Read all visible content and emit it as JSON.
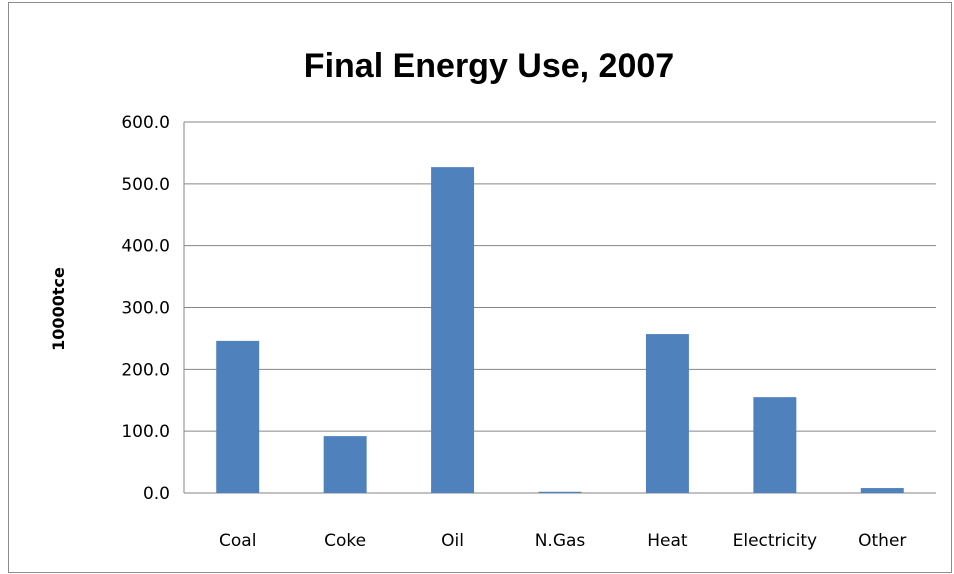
{
  "chart_data": {
    "type": "bar",
    "title": "Final Energy Use, 2007",
    "xlabel": "",
    "ylabel": "10000tce",
    "categories": [
      "Coal",
      "Coke",
      "Oil",
      "N.Gas",
      "Heat",
      "Electricity",
      "Other"
    ],
    "values": [
      246.0,
      92.0,
      527.0,
      2.0,
      257.0,
      155.0,
      8.0
    ],
    "ylim": [
      0,
      600
    ],
    "yticks": [
      "0.0",
      "100.0",
      "200.0",
      "300.0",
      "400.0",
      "500.0",
      "600.0"
    ],
    "grid": true,
    "legend": "none",
    "bar_color": "#4f81bd"
  }
}
